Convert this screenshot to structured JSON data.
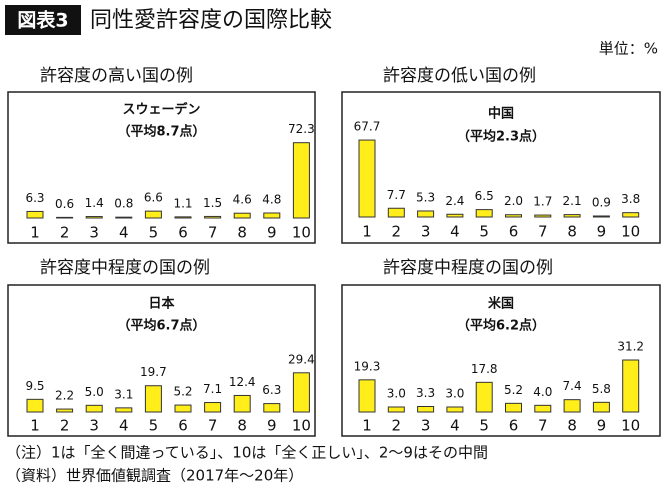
{
  "header": {
    "badge": "図表3",
    "title": "同性愛許容度の国際比較",
    "unit": "単位：%"
  },
  "chart_data": [
    {
      "type": "bar",
      "heading": "許容度の高い国の例",
      "title": "スウェーデン",
      "subtitle": "（平均8.7点）",
      "categories": [
        "1",
        "2",
        "3",
        "4",
        "5",
        "6",
        "7",
        "8",
        "9",
        "10"
      ],
      "values": [
        6.3,
        0.6,
        1.4,
        0.8,
        6.6,
        1.1,
        1.5,
        4.6,
        4.8,
        72.3
      ],
      "value_labels": [
        "6.3",
        "0.6",
        "1.4",
        "0.8",
        "6.6",
        "1.1",
        "1.5",
        "4.6",
        "4.8",
        "72.3"
      ],
      "color": "#ffee1a",
      "ylim": [
        0,
        96
      ]
    },
    {
      "type": "bar",
      "heading": "許容度の低い国の例",
      "title": "中国",
      "subtitle": "（平均2.3点）",
      "categories": [
        "1",
        "2",
        "3",
        "4",
        "5",
        "6",
        "7",
        "8",
        "9",
        "10"
      ],
      "values": [
        67.7,
        7.7,
        5.3,
        2.4,
        6.5,
        2.0,
        1.7,
        2.1,
        0.9,
        3.8
      ],
      "value_labels": [
        "67.7",
        "7.7",
        "5.3",
        "2.4",
        "6.5",
        "2.0",
        "1.7",
        "2.1",
        "0.9",
        "3.8"
      ],
      "color": "#ffee1a",
      "ylim": [
        0,
        88
      ]
    },
    {
      "type": "bar",
      "heading": "許容度中程度の国の例",
      "title": "日本",
      "subtitle": "（平均6.7点）",
      "categories": [
        "1",
        "2",
        "3",
        "4",
        "5",
        "6",
        "7",
        "8",
        "9",
        "10"
      ],
      "values": [
        9.5,
        2.2,
        5.0,
        3.1,
        19.7,
        5.2,
        7.1,
        12.4,
        6.3,
        29.4
      ],
      "value_labels": [
        "9.5",
        "2.2",
        "5.0",
        "3.1",
        "19.7",
        "5.2",
        "7.1",
        "12.4",
        "6.3",
        "29.4"
      ],
      "color": "#ffee1a",
      "ylim": [
        0,
        45
      ]
    },
    {
      "type": "bar",
      "heading": "許容度中程度の国の例",
      "title": "米国",
      "subtitle": "（平均6.2点）",
      "categories": [
        "1",
        "2",
        "3",
        "4",
        "5",
        "6",
        "7",
        "8",
        "9",
        "10"
      ],
      "values": [
        19.3,
        3.0,
        3.3,
        3.0,
        17.8,
        5.2,
        4.0,
        7.4,
        5.8,
        31.2
      ],
      "value_labels": [
        "19.3",
        "3.0",
        "3.3",
        "3.0",
        "17.8",
        "5.2",
        "4.0",
        "7.4",
        "5.8",
        "31.2"
      ],
      "color": "#ffee1a",
      "ylim": [
        0,
        36
      ]
    }
  ],
  "notes": [
    "（注）1は「全く間違っている」、10は「全く正しい」、2〜9はその中間",
    "（資料）世界価値観調査（2017年〜20年）"
  ]
}
